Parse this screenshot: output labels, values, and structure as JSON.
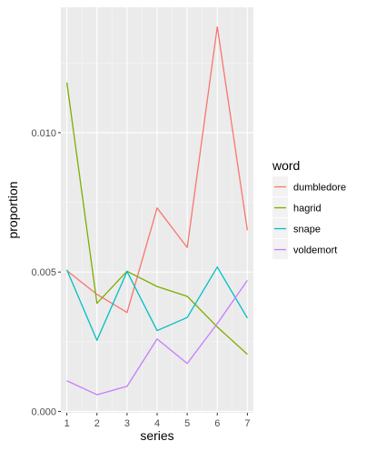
{
  "chart_data": {
    "type": "line",
    "xlabel": "series",
    "ylabel": "proportion",
    "x": [
      1,
      2,
      3,
      4,
      5,
      6,
      7
    ],
    "x_tick_labels": [
      "1",
      "2",
      "3",
      "4",
      "5",
      "6",
      "7"
    ],
    "y_ticks": [
      0.0,
      0.005,
      0.01
    ],
    "y_tick_labels": [
      "0.000",
      "0.005",
      "0.010"
    ],
    "xlim": [
      0.8,
      7.2
    ],
    "ylim": [
      -5e-05,
      0.0145
    ],
    "grid": true,
    "background": "#ebebeb",
    "legend": {
      "title": "word",
      "position": "right"
    },
    "series": [
      {
        "name": "dumbledore",
        "color": "#F8766D",
        "values": [
          0.00505,
          0.0042,
          0.00355,
          0.0073,
          0.00588,
          0.0138,
          0.0065
        ]
      },
      {
        "name": "hagrid",
        "color": "#7CAE00",
        "values": [
          0.0118,
          0.00388,
          0.00503,
          0.00448,
          0.00413,
          0.00303,
          0.00205
        ]
      },
      {
        "name": "snape",
        "color": "#00BFC4",
        "values": [
          0.00508,
          0.00255,
          0.00502,
          0.0029,
          0.00337,
          0.00518,
          0.00335
        ]
      },
      {
        "name": "voldemort",
        "color": "#C77CFF",
        "values": [
          0.0011,
          0.0006,
          0.0009,
          0.0026,
          0.00172,
          0.00315,
          0.0047
        ]
      }
    ]
  }
}
